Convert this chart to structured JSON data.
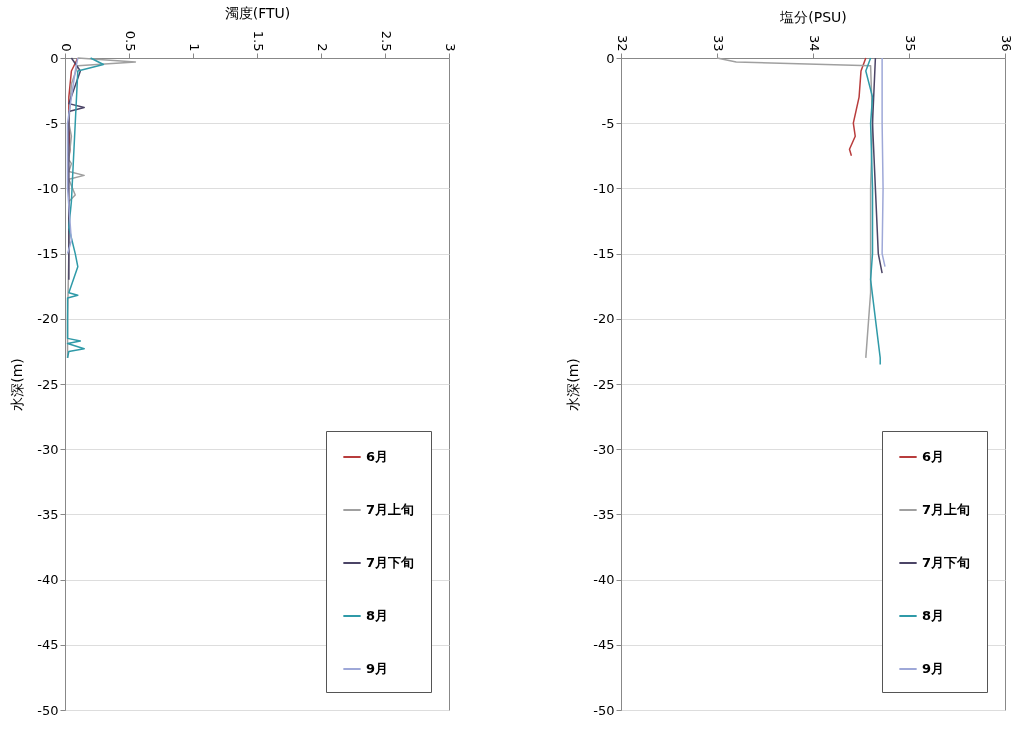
{
  "chart_data": [
    {
      "type": "line",
      "xlabel": "濁度(FTU)",
      "ylabel": "水深(m)",
      "xlim": [
        0,
        3
      ],
      "xticks": [
        0,
        0.5,
        1,
        1.5,
        2,
        2.5,
        3
      ],
      "ylim": [
        -50,
        0
      ],
      "yticks": [
        0,
        -5,
        -10,
        -15,
        -20,
        -25,
        -30,
        -35,
        -40,
        -45,
        -50
      ],
      "grid": "y",
      "legend": "bottom right",
      "series": [
        {
          "name": "6月",
          "color": "#b83c3c",
          "x": [
            0.1,
            0.05,
            0.03,
            0.03,
            0.04,
            0.03
          ],
          "values": [
            0,
            -1,
            -3,
            -5,
            -7,
            -7.5
          ]
        },
        {
          "name": "7月上旬",
          "color": "#a0a0a0",
          "x": [
            0.1,
            0.55,
            0.1,
            0.05,
            0.03,
            0.05,
            0.03,
            0.05,
            0.03,
            0.15,
            0.03,
            0.08,
            0.03,
            0.03,
            0.02,
            0.02
          ],
          "values": [
            0,
            -0.3,
            -0.6,
            -2,
            -5,
            -6,
            -7.8,
            -8.1,
            -8.7,
            -9,
            -9.3,
            -10.5,
            -11,
            -15,
            -20,
            -23
          ]
        },
        {
          "name": "7月下旬",
          "color": "#4b4466",
          "x": [
            0.05,
            0.12,
            0.03,
            0.15,
            0.03,
            0.03,
            0.03,
            0.03
          ],
          "values": [
            0,
            -1,
            -3.5,
            -3.8,
            -4.1,
            -8,
            -12,
            -17
          ]
        },
        {
          "name": "8月",
          "color": "#2f9aa8",
          "x": [
            0.2,
            0.3,
            0.1,
            0.05,
            0.03,
            0.08,
            0.1,
            0.03,
            0.1,
            0.02,
            0.02,
            0.12,
            0.02,
            0.15,
            0.03,
            0.02
          ],
          "values": [
            0,
            -0.5,
            -1,
            -11,
            -13,
            -15,
            -16,
            -18,
            -18.2,
            -18.4,
            -21.5,
            -21.7,
            -21.9,
            -22.3,
            -22.5,
            -23
          ]
        },
        {
          "name": "9月",
          "color": "#9ea8d8",
          "x": [
            0.1,
            0.08,
            0.05,
            0.02,
            0.02,
            0.05,
            0.02
          ],
          "values": [
            0,
            -1,
            -3,
            -5,
            -10,
            -14,
            -15
          ]
        }
      ]
    },
    {
      "type": "line",
      "xlabel": "塩分(PSU)",
      "ylabel": "水深(m)",
      "xlim": [
        32,
        36
      ],
      "xticks": [
        32,
        33,
        34,
        35,
        36
      ],
      "ylim": [
        -50,
        0
      ],
      "yticks": [
        0,
        -5,
        -10,
        -15,
        -20,
        -25,
        -30,
        -35,
        -40,
        -45,
        -50
      ],
      "grid": "y",
      "legend": "bottom right",
      "series": [
        {
          "name": "6月",
          "color": "#b83c3c",
          "x": [
            34.55,
            34.5,
            34.48,
            34.45,
            34.42,
            34.44,
            34.38,
            34.4
          ],
          "values": [
            0,
            -1,
            -3,
            -4,
            -5,
            -6,
            -7,
            -7.5
          ]
        },
        {
          "name": "7月上旬",
          "color": "#a0a0a0",
          "x": [
            33.0,
            33.2,
            34.6,
            34.62,
            34.6,
            34.6,
            34.6,
            34.58,
            34.55
          ],
          "values": [
            0,
            -0.3,
            -0.6,
            -5,
            -10,
            -15,
            -18,
            -20,
            -23
          ]
        },
        {
          "name": "7月下旬",
          "color": "#4b4466",
          "x": [
            34.65,
            34.62,
            34.65,
            34.68,
            34.72
          ],
          "values": [
            0,
            -5,
            -10,
            -15,
            -16.5
          ]
        },
        {
          "name": "8月",
          "color": "#2f9aa8",
          "x": [
            34.6,
            34.55,
            34.62,
            34.6,
            34.62,
            34.62,
            34.6,
            34.65,
            34.7,
            34.7
          ],
          "values": [
            0,
            -1,
            -3,
            -5,
            -10,
            -15,
            -17,
            -20,
            -23,
            -23.5
          ]
        },
        {
          "name": "9月",
          "color": "#9ea8d8",
          "x": [
            34.72,
            34.72,
            34.73,
            34.72,
            34.75
          ],
          "values": [
            0,
            -5,
            -10,
            -15,
            -16
          ]
        }
      ]
    }
  ]
}
